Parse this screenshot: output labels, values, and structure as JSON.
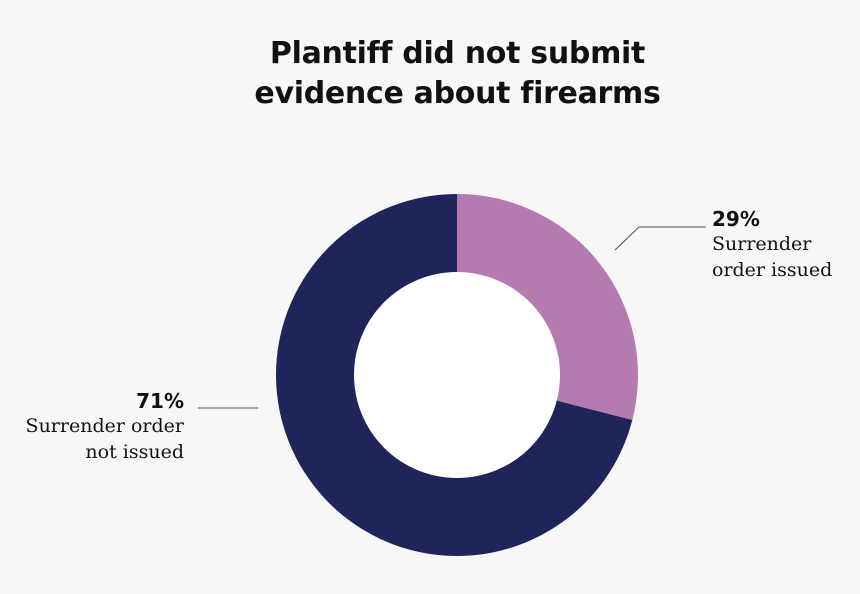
{
  "chart_data": {
    "type": "pie",
    "title": [
      "Plantiff did not submit",
      "evidence about firearms"
    ],
    "slices": [
      {
        "value": 29,
        "display": "29%",
        "label": [
          "Surrender",
          "order issued"
        ],
        "color": "#b57aaf"
      },
      {
        "value": 71,
        "display": "71%",
        "label": [
          "Surrender order",
          "not issued"
        ],
        "color": "#1f255a"
      }
    ],
    "donut_hole_color": "#ffffff",
    "leader_line_color": "#555555"
  }
}
